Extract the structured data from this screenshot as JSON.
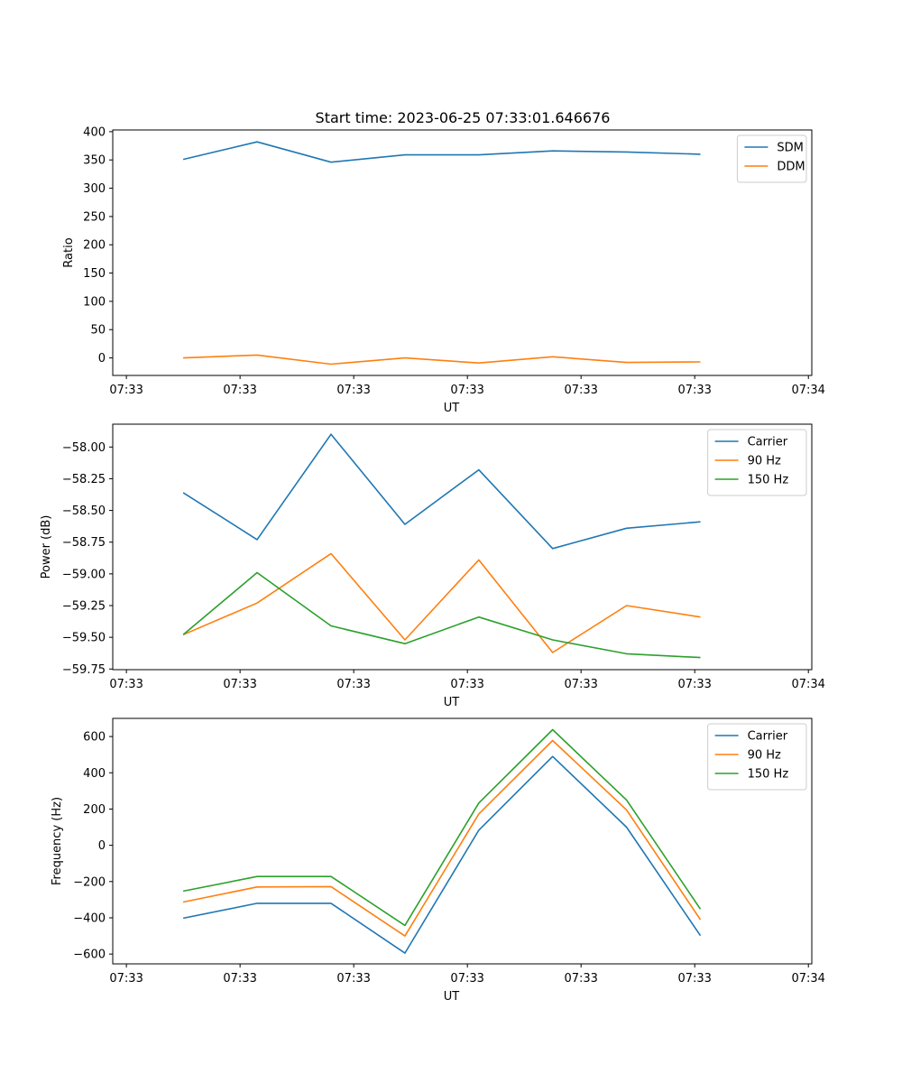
{
  "figure_title": "Start time: 2023-06-25 07:33:01.646676",
  "colors": {
    "blue": "#1f77b4",
    "orange": "#ff7f0e",
    "green": "#2ca02c"
  },
  "chart_data": [
    {
      "type": "line",
      "xlabel": "UT",
      "ylabel": "Ratio",
      "xtick_labels": [
        "07:33",
        "07:33",
        "07:33",
        "07:33",
        "07:33",
        "07:33",
        "07:34"
      ],
      "ylim": [
        -31,
        403
      ],
      "yticks": [
        0,
        50,
        100,
        150,
        200,
        250,
        300,
        350,
        400
      ],
      "ytick_labels": [
        "0",
        "50",
        "100",
        "150",
        "200",
        "250",
        "300",
        "350",
        "400"
      ],
      "legend": "top-right",
      "series": [
        {
          "name": "SDM",
          "color": "#1f77b4",
          "values": [
            351,
            382,
            346,
            359,
            359,
            366,
            364,
            360
          ]
        },
        {
          "name": "DDM",
          "color": "#ff7f0e",
          "values": [
            0,
            5,
            -11,
            0,
            -9,
            2,
            -8,
            -7
          ]
        }
      ]
    },
    {
      "type": "line",
      "xlabel": "UT",
      "ylabel": "Power (dB)",
      "xtick_labels": [
        "07:33",
        "07:33",
        "07:33",
        "07:33",
        "07:33",
        "07:33",
        "07:34"
      ],
      "ylim": [
        -59.755,
        -57.82
      ],
      "yticks": [
        -59.75,
        -59.5,
        -59.25,
        -59.0,
        -58.75,
        -58.5,
        -58.25,
        -58.0
      ],
      "ytick_labels": [
        "−59.75",
        "−59.50",
        "−59.25",
        "−59.00",
        "−58.75",
        "−58.50",
        "−58.25",
        "−58.00"
      ],
      "legend": "top-right",
      "series": [
        {
          "name": "Carrier",
          "color": "#1f77b4",
          "values": [
            -58.36,
            -58.73,
            -57.9,
            -58.61,
            -58.18,
            -58.8,
            -58.64,
            -58.59
          ]
        },
        {
          "name": "90 Hz",
          "color": "#ff7f0e",
          "values": [
            -59.48,
            -59.23,
            -58.84,
            -59.52,
            -58.89,
            -59.62,
            -59.25,
            -59.34
          ]
        },
        {
          "name": "150 Hz",
          "color": "#2ca02c",
          "values": [
            -59.48,
            -58.99,
            -59.41,
            -59.55,
            -59.34,
            -59.52,
            -59.63,
            -59.66
          ]
        }
      ]
    },
    {
      "type": "line",
      "xlabel": "UT",
      "ylabel": "Frequency (Hz)",
      "xtick_labels": [
        "07:33",
        "07:33",
        "07:33",
        "07:33",
        "07:33",
        "07:33",
        "07:34"
      ],
      "ylim": [
        -654,
        700
      ],
      "yticks": [
        -600,
        -400,
        -200,
        0,
        200,
        400,
        600
      ],
      "ytick_labels": [
        "−600",
        "−400",
        "−200",
        "0",
        "200",
        "400",
        "600"
      ],
      "legend": "top-right",
      "series": [
        {
          "name": "Carrier",
          "color": "#1f77b4",
          "values": [
            -402,
            -320,
            -320,
            -595,
            83,
            490,
            100,
            -498
          ]
        },
        {
          "name": "90 Hz",
          "color": "#ff7f0e",
          "values": [
            -313,
            -230,
            -228,
            -500,
            173,
            578,
            195,
            -410
          ]
        },
        {
          "name": "150 Hz",
          "color": "#2ca02c",
          "values": [
            -253,
            -172,
            -172,
            -442,
            233,
            638,
            250,
            -352
          ]
        }
      ]
    }
  ]
}
